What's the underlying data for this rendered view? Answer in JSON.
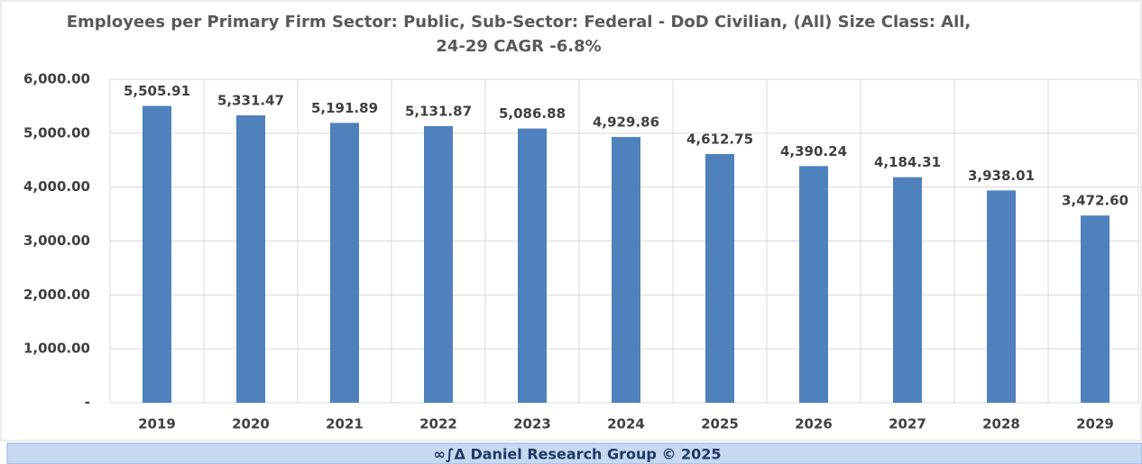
{
  "chart_data": {
    "type": "bar",
    "title": [
      "Employees per Primary Firm Sector: Public, Sub-Sector: Federal - DoD Civilian, (All) Size Class: All,",
      "24-29 CAGR -6.8%"
    ],
    "categories": [
      "2019",
      "2020",
      "2021",
      "2022",
      "2023",
      "2024",
      "2025",
      "2026",
      "2027",
      "2028",
      "2029"
    ],
    "values": [
      5505.91,
      5331.47,
      5191.89,
      5131.87,
      5086.88,
      4929.86,
      4612.75,
      4390.24,
      4184.31,
      3938.01,
      3472.6
    ],
    "value_labels": [
      "5,505.91",
      "5,331.47",
      "5,191.89",
      "5,131.87",
      "5,086.88",
      "4,929.86",
      "4,612.75",
      "4,390.24",
      "4,184.31",
      "3,938.01",
      "3,472.60"
    ],
    "color": "#4f81bd",
    "ylim": [
      0,
      6000
    ],
    "yticks": [
      {
        "value": 0,
        "label": "-"
      },
      {
        "value": 1000,
        "label": "1,000.00"
      },
      {
        "value": 2000,
        "label": "2,000.00"
      },
      {
        "value": 3000,
        "label": "3,000.00"
      },
      {
        "value": 4000,
        "label": "4,000.00"
      },
      {
        "value": 5000,
        "label": "5,000.00"
      },
      {
        "value": 6000,
        "label": "6,000.00"
      }
    ],
    "grid": true,
    "footer": "∞∫Δ Daniel Research Group © 2025"
  }
}
